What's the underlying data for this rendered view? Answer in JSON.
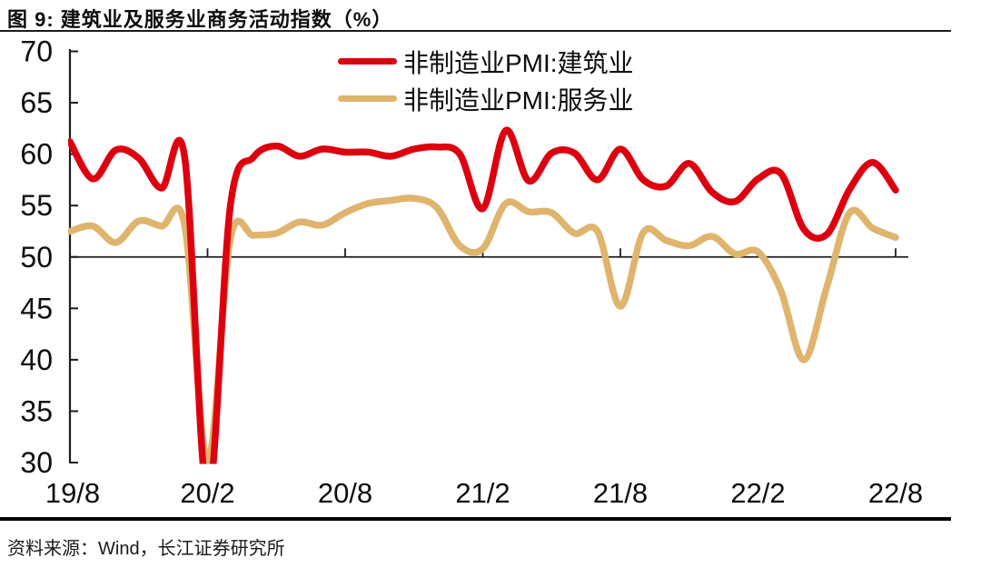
{
  "header": {
    "title": "图 9: 建筑业及服务业商务活动指数（%）"
  },
  "footer": {
    "source": "资料来源：Wind，长江证券研究所"
  },
  "chart_data": {
    "type": "line",
    "title": "建筑业及服务业商务活动指数（%）",
    "x_start": "2019-08",
    "x_end": "2022-08",
    "x_tick_labels": [
      "19/8",
      "20/2",
      "20/8",
      "21/2",
      "21/8",
      "22/2",
      "22/8"
    ],
    "x_tick_month_index": [
      0,
      6,
      12,
      18,
      24,
      30,
      36
    ],
    "y_ticks": [
      30,
      35,
      40,
      45,
      50,
      55,
      60,
      65,
      70
    ],
    "ylim": [
      30,
      70
    ],
    "reference_line": 50,
    "grid": false,
    "legend_position": "top-center",
    "axis_color": "#1c1c1c",
    "months": [
      "2019-08",
      "2019-09",
      "2019-10",
      "2019-11",
      "2019-12",
      "2020-01",
      "2020-02",
      "2020-03",
      "2020-04",
      "2020-05",
      "2020-06",
      "2020-07",
      "2020-08",
      "2020-09",
      "2020-10",
      "2020-11",
      "2020-12",
      "2021-01",
      "2021-02",
      "2021-03",
      "2021-04",
      "2021-05",
      "2021-06",
      "2021-07",
      "2021-08",
      "2021-09",
      "2021-10",
      "2021-11",
      "2021-12",
      "2022-01",
      "2022-02",
      "2022-03",
      "2022-04",
      "2022-05",
      "2022-06",
      "2022-07",
      "2022-08"
    ],
    "series": [
      {
        "name": "非制造业PMI:建筑业",
        "color": "#dd000f",
        "values": [
          61.2,
          57.6,
          60.4,
          59.6,
          56.7,
          59.7,
          26.6,
          55.1,
          59.7,
          60.8,
          59.8,
          60.5,
          60.2,
          60.2,
          59.8,
          60.5,
          60.7,
          60.0,
          54.7,
          62.3,
          57.4,
          60.1,
          60.1,
          57.5,
          60.5,
          57.5,
          56.9,
          59.1,
          56.3,
          55.4,
          57.6,
          58.1,
          52.7,
          52.2,
          56.6,
          59.2,
          56.5
        ]
      },
      {
        "name": "非制造业PMI:服务业",
        "color": "#dfb46d",
        "values": [
          52.5,
          53.0,
          51.4,
          53.5,
          53.0,
          53.1,
          30.1,
          51.8,
          52.1,
          52.3,
          53.4,
          53.1,
          54.3,
          55.2,
          55.5,
          55.7,
          54.8,
          51.1,
          50.8,
          55.2,
          54.4,
          54.3,
          52.3,
          52.5,
          45.2,
          52.4,
          51.6,
          51.1,
          52.0,
          50.3,
          50.5,
          46.7,
          40.0,
          47.1,
          54.3,
          52.8,
          51.9
        ]
      }
    ]
  }
}
